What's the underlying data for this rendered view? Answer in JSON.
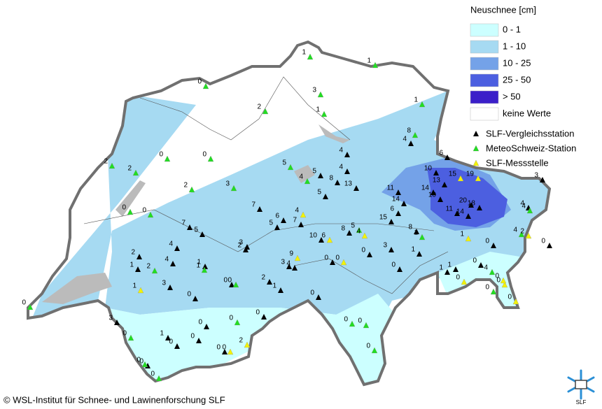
{
  "legend": {
    "title": "Neuschnee [cm]",
    "classes": [
      {
        "label": "0 - 1",
        "color": "#ccffff"
      },
      {
        "label": "1 - 10",
        "color": "#a6daf2"
      },
      {
        "label": "10 - 25",
        "color": "#74a2e8"
      },
      {
        "label": "25 - 50",
        "color": "#4c5fe0"
      },
      {
        "label": "> 50",
        "color": "#3b1fc9"
      },
      {
        "label": "keine Werte",
        "color": "#ffffff"
      }
    ]
  },
  "stations": [
    {
      "name": "SLF-Vergleichsstation",
      "color": "#000000",
      "values": [
        6,
        10,
        14,
        10,
        13,
        11,
        14,
        20,
        18,
        3,
        4,
        4,
        4,
        4,
        8,
        5,
        5,
        13,
        11,
        14,
        6,
        15,
        8,
        8,
        10,
        0,
        3,
        1,
        0,
        1,
        1,
        0,
        0,
        0,
        7,
        6,
        7,
        5,
        7,
        5,
        4,
        4,
        2,
        1,
        1,
        2,
        3,
        3,
        4,
        2,
        1,
        0,
        3,
        0,
        0,
        0,
        1,
        0,
        0,
        0,
        0,
        3,
        0,
        0
      ]
    },
    {
      "name": "MeteoSchweiz-Station",
      "color": "#22dd22",
      "values": [
        1,
        1,
        0,
        3,
        1,
        2,
        1,
        8,
        2,
        2,
        0,
        0,
        3,
        2,
        0,
        0,
        2,
        1,
        0,
        0,
        0,
        0,
        0,
        0,
        0,
        0,
        0,
        5,
        4,
        4,
        4,
        0,
        5,
        4,
        1
      ]
    },
    {
      "name": "SLF-Messstelle",
      "color": "#f2f20a",
      "values": [
        15,
        19,
        0,
        0,
        0,
        1,
        4,
        4,
        6,
        0,
        9,
        1,
        2,
        0,
        2,
        0
      ]
    }
  ],
  "copyright": "© WSL-Institut für Schnee- und Lawinenforschung SLF",
  "logo": "SLF"
}
